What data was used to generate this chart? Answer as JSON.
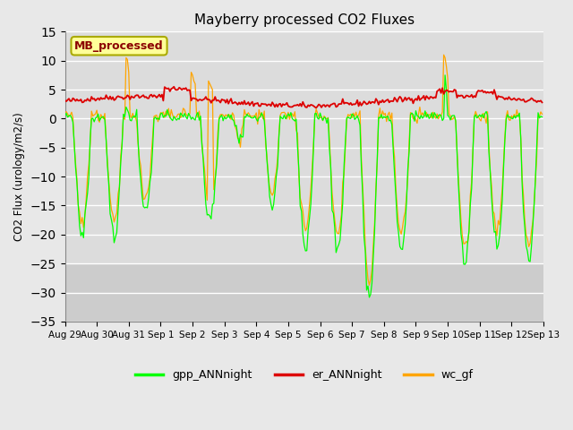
{
  "title": "Mayberry processed CO2 Fluxes",
  "ylabel": "CO2 Flux (urology/m2/s)",
  "ylim": [
    -35,
    15
  ],
  "yticks": [
    -35,
    -30,
    -25,
    -20,
    -15,
    -10,
    -5,
    0,
    5,
    10,
    15
  ],
  "background_color": "#e8e8e8",
  "plot_bg_color": "#dcdcdc",
  "annotation_text": "MB_processed",
  "annotation_color": "#8b0000",
  "annotation_bg": "#ffff99",
  "annotation_edge": "#aaaa00",
  "legend_entries": [
    "gpp_ANNnight",
    "er_ANNnight",
    "wc_gf"
  ],
  "colors": {
    "gpp_ANNnight": "#00ff00",
    "er_ANNnight": "#dd0000",
    "wc_gf": "#ffa500"
  },
  "n_points": 360,
  "x_tick_labels": [
    "Aug 29",
    "Aug 30",
    "Aug 31",
    "Sep 1",
    "Sep 2",
    "Sep 3",
    "Sep 4",
    "Sep 5",
    "Sep 6",
    "Sep 7",
    "Sep 8",
    "Sep 9",
    "Sep 10",
    "Sep 11",
    "Sep 12",
    "Sep 13"
  ],
  "x_tick_positions": [
    0,
    24,
    48,
    72,
    96,
    120,
    144,
    168,
    192,
    216,
    240,
    264,
    288,
    312,
    336,
    360
  ]
}
